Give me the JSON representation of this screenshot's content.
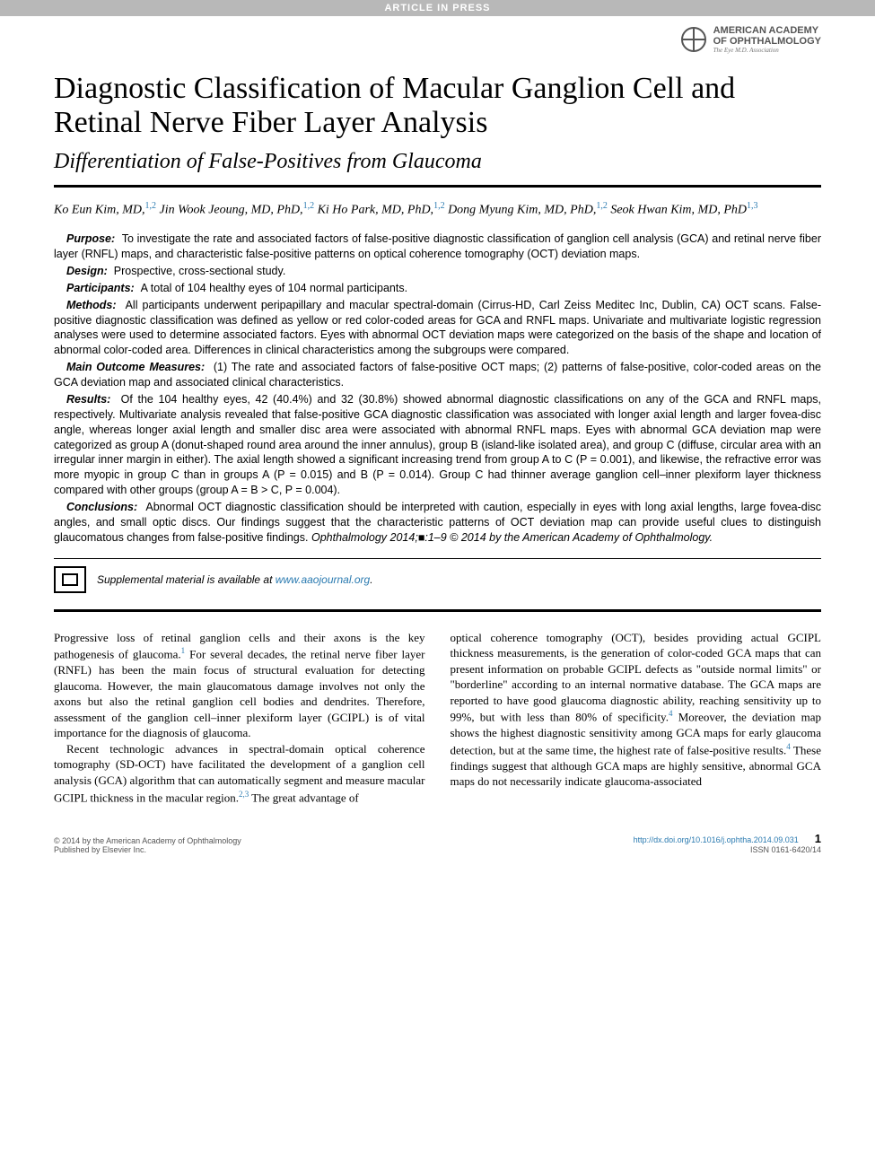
{
  "banner": "ARTICLE IN PRESS",
  "publisher": {
    "name_line1": "AMERICAN ACADEMY",
    "name_line2": "OF OPHTHALMOLOGY",
    "tagline": "The Eye M.D. Association"
  },
  "title": "Diagnostic Classification of Macular Ganglion Cell and Retinal Nerve Fiber Layer Analysis",
  "subtitle": "Differentiation of False-Positives from Glaucoma",
  "authors": [
    {
      "name": "Ko Eun Kim, MD,",
      "affil": "1,2"
    },
    {
      "name": "Jin Wook Jeoung, MD, PhD,",
      "affil": "1,2"
    },
    {
      "name": "Ki Ho Park, MD, PhD,",
      "affil": "1,2"
    },
    {
      "name": "Dong Myung Kim, MD, PhD,",
      "affil": "1,2"
    },
    {
      "name": "Seok Hwan Kim, MD, PhD",
      "affil": "1,3"
    }
  ],
  "abstract": {
    "purpose": {
      "label": "Purpose:",
      "text": "To investigate the rate and associated factors of false-positive diagnostic classification of ganglion cell analysis (GCA) and retinal nerve fiber layer (RNFL) maps, and characteristic false-positive patterns on optical coherence tomography (OCT) deviation maps."
    },
    "design": {
      "label": "Design:",
      "text": "Prospective, cross-sectional study."
    },
    "participants": {
      "label": "Participants:",
      "text": "A total of 104 healthy eyes of 104 normal participants."
    },
    "methods": {
      "label": "Methods:",
      "text": "All participants underwent peripapillary and macular spectral-domain (Cirrus-HD, Carl Zeiss Meditec Inc, Dublin, CA) OCT scans. False-positive diagnostic classification was defined as yellow or red color-coded areas for GCA and RNFL maps. Univariate and multivariate logistic regression analyses were used to determine associated factors. Eyes with abnormal OCT deviation maps were categorized on the basis of the shape and location of abnormal color-coded area. Differences in clinical characteristics among the subgroups were compared."
    },
    "outcome": {
      "label": "Main Outcome Measures:",
      "text": "(1) The rate and associated factors of false-positive OCT maps; (2) patterns of false-positive, color-coded areas on the GCA deviation map and associated clinical characteristics."
    },
    "results": {
      "label": "Results:",
      "text": "Of the 104 healthy eyes, 42 (40.4%) and 32 (30.8%) showed abnormal diagnostic classifications on any of the GCA and RNFL maps, respectively. Multivariate analysis revealed that false-positive GCA diagnostic classification was associated with longer axial length and larger fovea-disc angle, whereas longer axial length and smaller disc area were associated with abnormal RNFL maps. Eyes with abnormal GCA deviation map were categorized as group A (donut-shaped round area around the inner annulus), group B (island-like isolated area), and group C (diffuse, circular area with an irregular inner margin in either). The axial length showed a significant increasing trend from group A to C (P = 0.001), and likewise, the refractive error was more myopic in group C than in groups A (P = 0.015) and B (P = 0.014). Group C had thinner average ganglion cell–inner plexiform layer thickness compared with other groups (group A = B > C, P = 0.004)."
    },
    "conclusions": {
      "label": "Conclusions:",
      "text": "Abnormal OCT diagnostic classification should be interpreted with caution, especially in eyes with long axial lengths, large fovea-disc angles, and small optic discs. Our findings suggest that the characteristic patterns of OCT deviation map can provide useful clues to distinguish glaucomatous changes from false-positive findings."
    },
    "journal_ref": "Ophthalmology 2014;■:1–9 © 2014 by the American Academy of Ophthalmology."
  },
  "supplement": {
    "text": "Supplemental material is available at ",
    "link": "www.aaojournal.org",
    "suffix": "."
  },
  "body": {
    "col1_p1": "Progressive loss of retinal ganglion cells and their axons is the key pathogenesis of glaucoma.",
    "col1_p1_ref": "1",
    "col1_p1_cont": " For several decades, the retinal nerve fiber layer (RNFL) has been the main focus of structural evaluation for detecting glaucoma. However, the main glaucomatous damage involves not only the axons but also the retinal ganglion cell bodies and dendrites. Therefore, assessment of the ganglion cell–inner plexiform layer (GCIPL) is of vital importance for the diagnosis of glaucoma.",
    "col1_p2": "Recent technologic advances in spectral-domain optical coherence tomography (SD-OCT) have facilitated the development of a ganglion cell analysis (GCA) algorithm that can automatically segment and measure macular GCIPL thickness in the macular region.",
    "col1_p2_ref": "2,3",
    "col1_p2_cont": " The great advantage of",
    "col2_p1": "optical coherence tomography (OCT), besides providing actual GCIPL thickness measurements, is the generation of color-coded GCA maps that can present information on probable GCIPL defects as \"outside normal limits\" or \"borderline\" according to an internal normative database. The GCA maps are reported to have good glaucoma diagnostic ability, reaching sensitivity up to 99%, but with less than 80% of specificity.",
    "col2_p1_ref": "4",
    "col2_p1_cont": " Moreover, the deviation map shows the highest diagnostic sensitivity among GCA maps for early glaucoma detection, but at the same time, the highest rate of false-positive results.",
    "col2_p1_ref2": "4",
    "col2_p1_cont2": " These findings suggest that although GCA maps are highly sensitive, abnormal GCA maps do not necessarily indicate glaucoma-associated"
  },
  "footer": {
    "copyright_line1": "© 2014 by the American Academy of Ophthalmology",
    "copyright_line2": "Published by Elsevier Inc.",
    "doi": "http://dx.doi.org/10.1016/j.ophtha.2014.09.031",
    "issn": "ISSN 0161-6420/14",
    "page": "1"
  },
  "colors": {
    "link": "#2a7ab0",
    "banner_bg": "#b8b8b8",
    "text": "#000000"
  }
}
